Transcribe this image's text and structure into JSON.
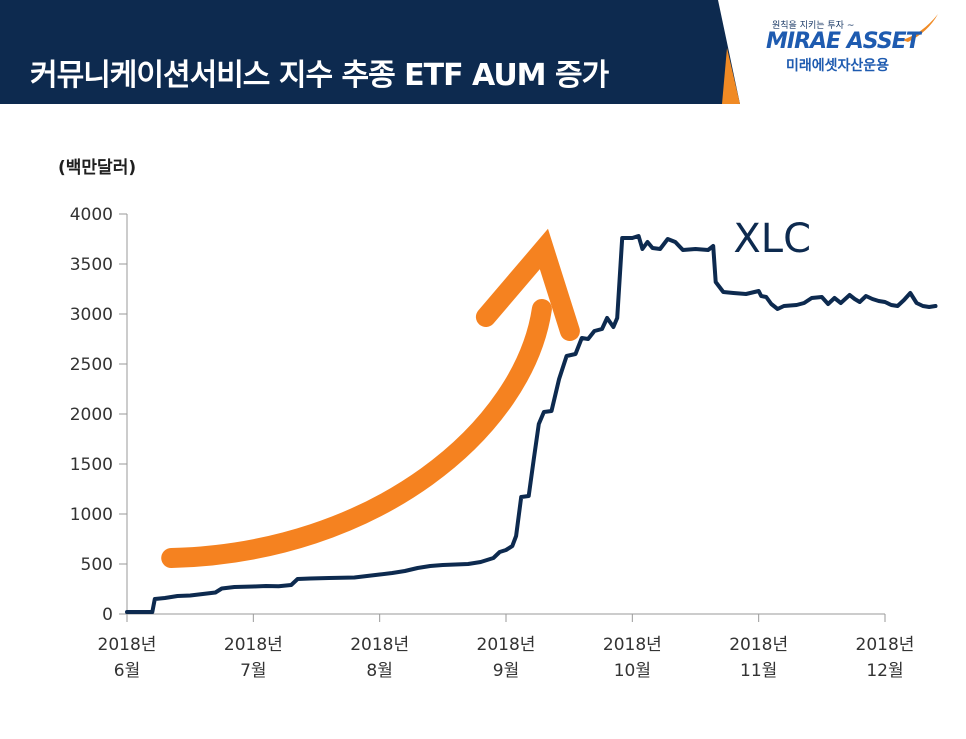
{
  "header": {
    "title": "커뮤니케이션서비스 지수 추종 ETF AUM 증가",
    "background_color": "#0d2a4f",
    "accent_color": "#f08a24"
  },
  "logo": {
    "tagline": "원칙을 지키는 투자 ~",
    "brand": "MIRAE ASSET",
    "korean": "미래에셋자산운용",
    "brand_color": "#1e5bb0"
  },
  "chart_data": {
    "type": "line",
    "unit_label": "(백만달러)",
    "ylim": [
      0,
      4000
    ],
    "yticks": [
      0,
      500,
      1000,
      1500,
      2000,
      2500,
      3000,
      3500,
      4000
    ],
    "xlim": [
      0,
      6
    ],
    "xticks": [
      {
        "x": 0,
        "line1": "2018년",
        "line2": "6월"
      },
      {
        "x": 1,
        "line1": "2018년",
        "line2": "7월"
      },
      {
        "x": 2,
        "line1": "2018년",
        "line2": "8월"
      },
      {
        "x": 3,
        "line1": "2018년",
        "line2": "9월"
      },
      {
        "x": 4,
        "line1": "2018년",
        "line2": "10월"
      },
      {
        "x": 5,
        "line1": "2018년",
        "line2": "11월"
      },
      {
        "x": 6,
        "line1": "2018년",
        "line2": "12월"
      }
    ],
    "series": [
      {
        "name": "XLC",
        "color": "#0d2a4f",
        "points": [
          [
            0.0,
            20
          ],
          [
            0.2,
            20
          ],
          [
            0.22,
            150
          ],
          [
            0.3,
            160
          ],
          [
            0.4,
            180
          ],
          [
            0.5,
            185
          ],
          [
            0.6,
            200
          ],
          [
            0.7,
            215
          ],
          [
            0.75,
            255
          ],
          [
            0.85,
            270
          ],
          [
            1.0,
            275
          ],
          [
            1.1,
            280
          ],
          [
            1.2,
            278
          ],
          [
            1.3,
            290
          ],
          [
            1.35,
            350
          ],
          [
            1.45,
            355
          ],
          [
            1.6,
            360
          ],
          [
            1.8,
            365
          ],
          [
            1.9,
            380
          ],
          [
            2.0,
            395
          ],
          [
            2.1,
            410
          ],
          [
            2.2,
            430
          ],
          [
            2.3,
            460
          ],
          [
            2.4,
            480
          ],
          [
            2.5,
            490
          ],
          [
            2.6,
            495
          ],
          [
            2.7,
            500
          ],
          [
            2.8,
            520
          ],
          [
            2.9,
            560
          ],
          [
            2.95,
            620
          ],
          [
            3.0,
            640
          ],
          [
            3.05,
            680
          ],
          [
            3.08,
            780
          ],
          [
            3.12,
            1170
          ],
          [
            3.18,
            1180
          ],
          [
            3.22,
            1550
          ],
          [
            3.26,
            1900
          ],
          [
            3.3,
            2020
          ],
          [
            3.36,
            2030
          ],
          [
            3.42,
            2350
          ],
          [
            3.48,
            2580
          ],
          [
            3.55,
            2600
          ],
          [
            3.6,
            2760
          ],
          [
            3.65,
            2750
          ],
          [
            3.7,
            2830
          ],
          [
            3.76,
            2850
          ],
          [
            3.8,
            2960
          ],
          [
            3.85,
            2870
          ],
          [
            3.88,
            2960
          ],
          [
            3.92,
            3760
          ],
          [
            4.0,
            3760
          ],
          [
            4.05,
            3780
          ],
          [
            4.08,
            3650
          ],
          [
            4.12,
            3720
          ],
          [
            4.16,
            3660
          ],
          [
            4.22,
            3650
          ],
          [
            4.28,
            3750
          ],
          [
            4.34,
            3720
          ],
          [
            4.4,
            3640
          ],
          [
            4.5,
            3650
          ],
          [
            4.6,
            3640
          ],
          [
            4.64,
            3680
          ],
          [
            4.66,
            3320
          ],
          [
            4.72,
            3220
          ],
          [
            4.8,
            3210
          ],
          [
            4.9,
            3200
          ],
          [
            5.0,
            3230
          ],
          [
            5.02,
            3180
          ],
          [
            5.06,
            3170
          ],
          [
            5.1,
            3100
          ],
          [
            5.15,
            3050
          ],
          [
            5.2,
            3080
          ],
          [
            5.3,
            3090
          ],
          [
            5.36,
            3110
          ],
          [
            5.42,
            3160
          ],
          [
            5.5,
            3170
          ],
          [
            5.55,
            3100
          ],
          [
            5.6,
            3160
          ],
          [
            5.65,
            3110
          ],
          [
            5.72,
            3190
          ],
          [
            5.76,
            3150
          ],
          [
            5.8,
            3120
          ],
          [
            5.85,
            3180
          ],
          [
            5.9,
            3150
          ],
          [
            5.95,
            3130
          ],
          [
            6.0,
            3120
          ],
          [
            6.05,
            3090
          ],
          [
            6.1,
            3080
          ],
          [
            6.15,
            3140
          ],
          [
            6.2,
            3210
          ],
          [
            6.25,
            3110
          ],
          [
            6.3,
            3080
          ],
          [
            6.35,
            3070
          ],
          [
            6.4,
            3080
          ]
        ]
      }
    ],
    "annotations": [
      {
        "text": "XLC",
        "x": 4.8,
        "y": 3620
      }
    ],
    "trend_arrow": {
      "color": "#f58220",
      "from": [
        0.35,
        560
      ],
      "to": [
        3.3,
        3350
      ]
    }
  }
}
